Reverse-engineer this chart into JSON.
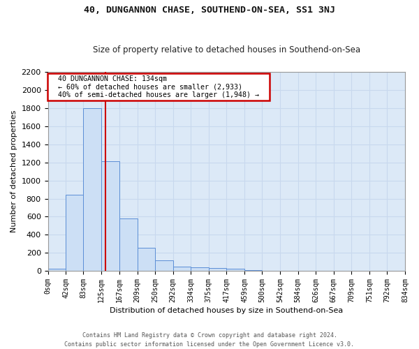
{
  "title1": "40, DUNGANNON CHASE, SOUTHEND-ON-SEA, SS1 3NJ",
  "title2": "Size of property relative to detached houses in Southend-on-Sea",
  "xlabel": "Distribution of detached houses by size in Southend-on-Sea",
  "ylabel": "Number of detached properties",
  "footer1": "Contains HM Land Registry data © Crown copyright and database right 2024.",
  "footer2": "Contains public sector information licensed under the Open Government Licence v3.0.",
  "bin_edges": [
    0,
    42,
    83,
    125,
    167,
    209,
    250,
    292,
    334,
    375,
    417,
    459,
    500,
    542,
    584,
    626,
    667,
    709,
    751,
    792,
    834
  ],
  "bin_labels": [
    "0sqm",
    "42sqm",
    "83sqm",
    "125sqm",
    "167sqm",
    "209sqm",
    "250sqm",
    "292sqm",
    "334sqm",
    "375sqm",
    "417sqm",
    "459sqm",
    "500sqm",
    "542sqm",
    "584sqm",
    "626sqm",
    "667sqm",
    "709sqm",
    "751sqm",
    "792sqm",
    "834sqm"
  ],
  "bar_heights": [
    25,
    840,
    1800,
    1210,
    580,
    255,
    120,
    45,
    40,
    30,
    20,
    10,
    0,
    0,
    0,
    0,
    0,
    0,
    0,
    0
  ],
  "bar_color": "#ccdff5",
  "bar_edge_color": "#5b8ed6",
  "grid_color": "#c8d8ee",
  "bg_color": "#dce9f7",
  "vline_x": 134,
  "vline_color": "#cc0000",
  "annotation_text": "  40 DUNGANNON CHASE: 134sqm  \n  ← 60% of detached houses are smaller (2,933)  \n  40% of semi-detached houses are larger (1,948) →  ",
  "annotation_box_color": "#ffffff",
  "annotation_box_edge": "#cc0000",
  "ylim": [
    0,
    2200
  ],
  "yticks": [
    0,
    200,
    400,
    600,
    800,
    1000,
    1200,
    1400,
    1600,
    1800,
    2000,
    2200
  ],
  "fig_bg": "#ffffff",
  "title1_fontsize": 9.5,
  "title2_fontsize": 8.5,
  "xlabel_fontsize": 8,
  "ylabel_fontsize": 8,
  "footer_fontsize": 6,
  "tick_fontsize": 7,
  "ytick_fontsize": 8
}
